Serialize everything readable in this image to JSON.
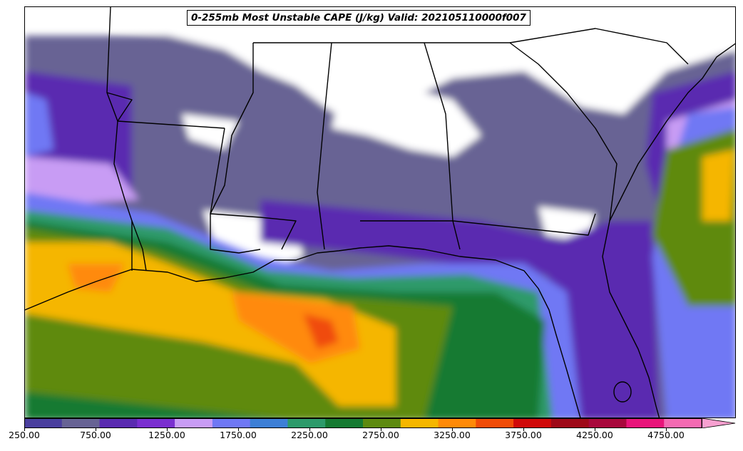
{
  "title": "0-255mb Most Unstable CAPE (J/kg) Valid: 202105110000f007",
  "colorbar": {
    "tick_labels": [
      "250.00",
      "750.00",
      "1250.00",
      "1750.00",
      "2250.00",
      "2750.00",
      "3250.00",
      "3750.00",
      "4250.00",
      "4750.00"
    ],
    "tick_values": [
      250,
      750,
      1250,
      1750,
      2250,
      2750,
      3250,
      3750,
      4250,
      4750
    ],
    "range": [
      250,
      5000
    ],
    "step": 250,
    "extend": "max",
    "colors": [
      "#4a3f9e",
      "#676394",
      "#5a2bb0",
      "#7a2fd0",
      "#c89cf4",
      "#6f78f4",
      "#3d7fd6",
      "#2d9a6a",
      "#167a32",
      "#5e8a10",
      "#f5b600",
      "#ff8a08",
      "#f04c08",
      "#d00a0a",
      "#9e0a18",
      "#a8083c",
      "#e8147a",
      "#f36ab2",
      "#f7a0d0"
    ]
  },
  "map": {
    "region": "Southeastern United States and Gulf of Mexico",
    "no_data_color": "#ffffff",
    "border_color": "#000000"
  }
}
